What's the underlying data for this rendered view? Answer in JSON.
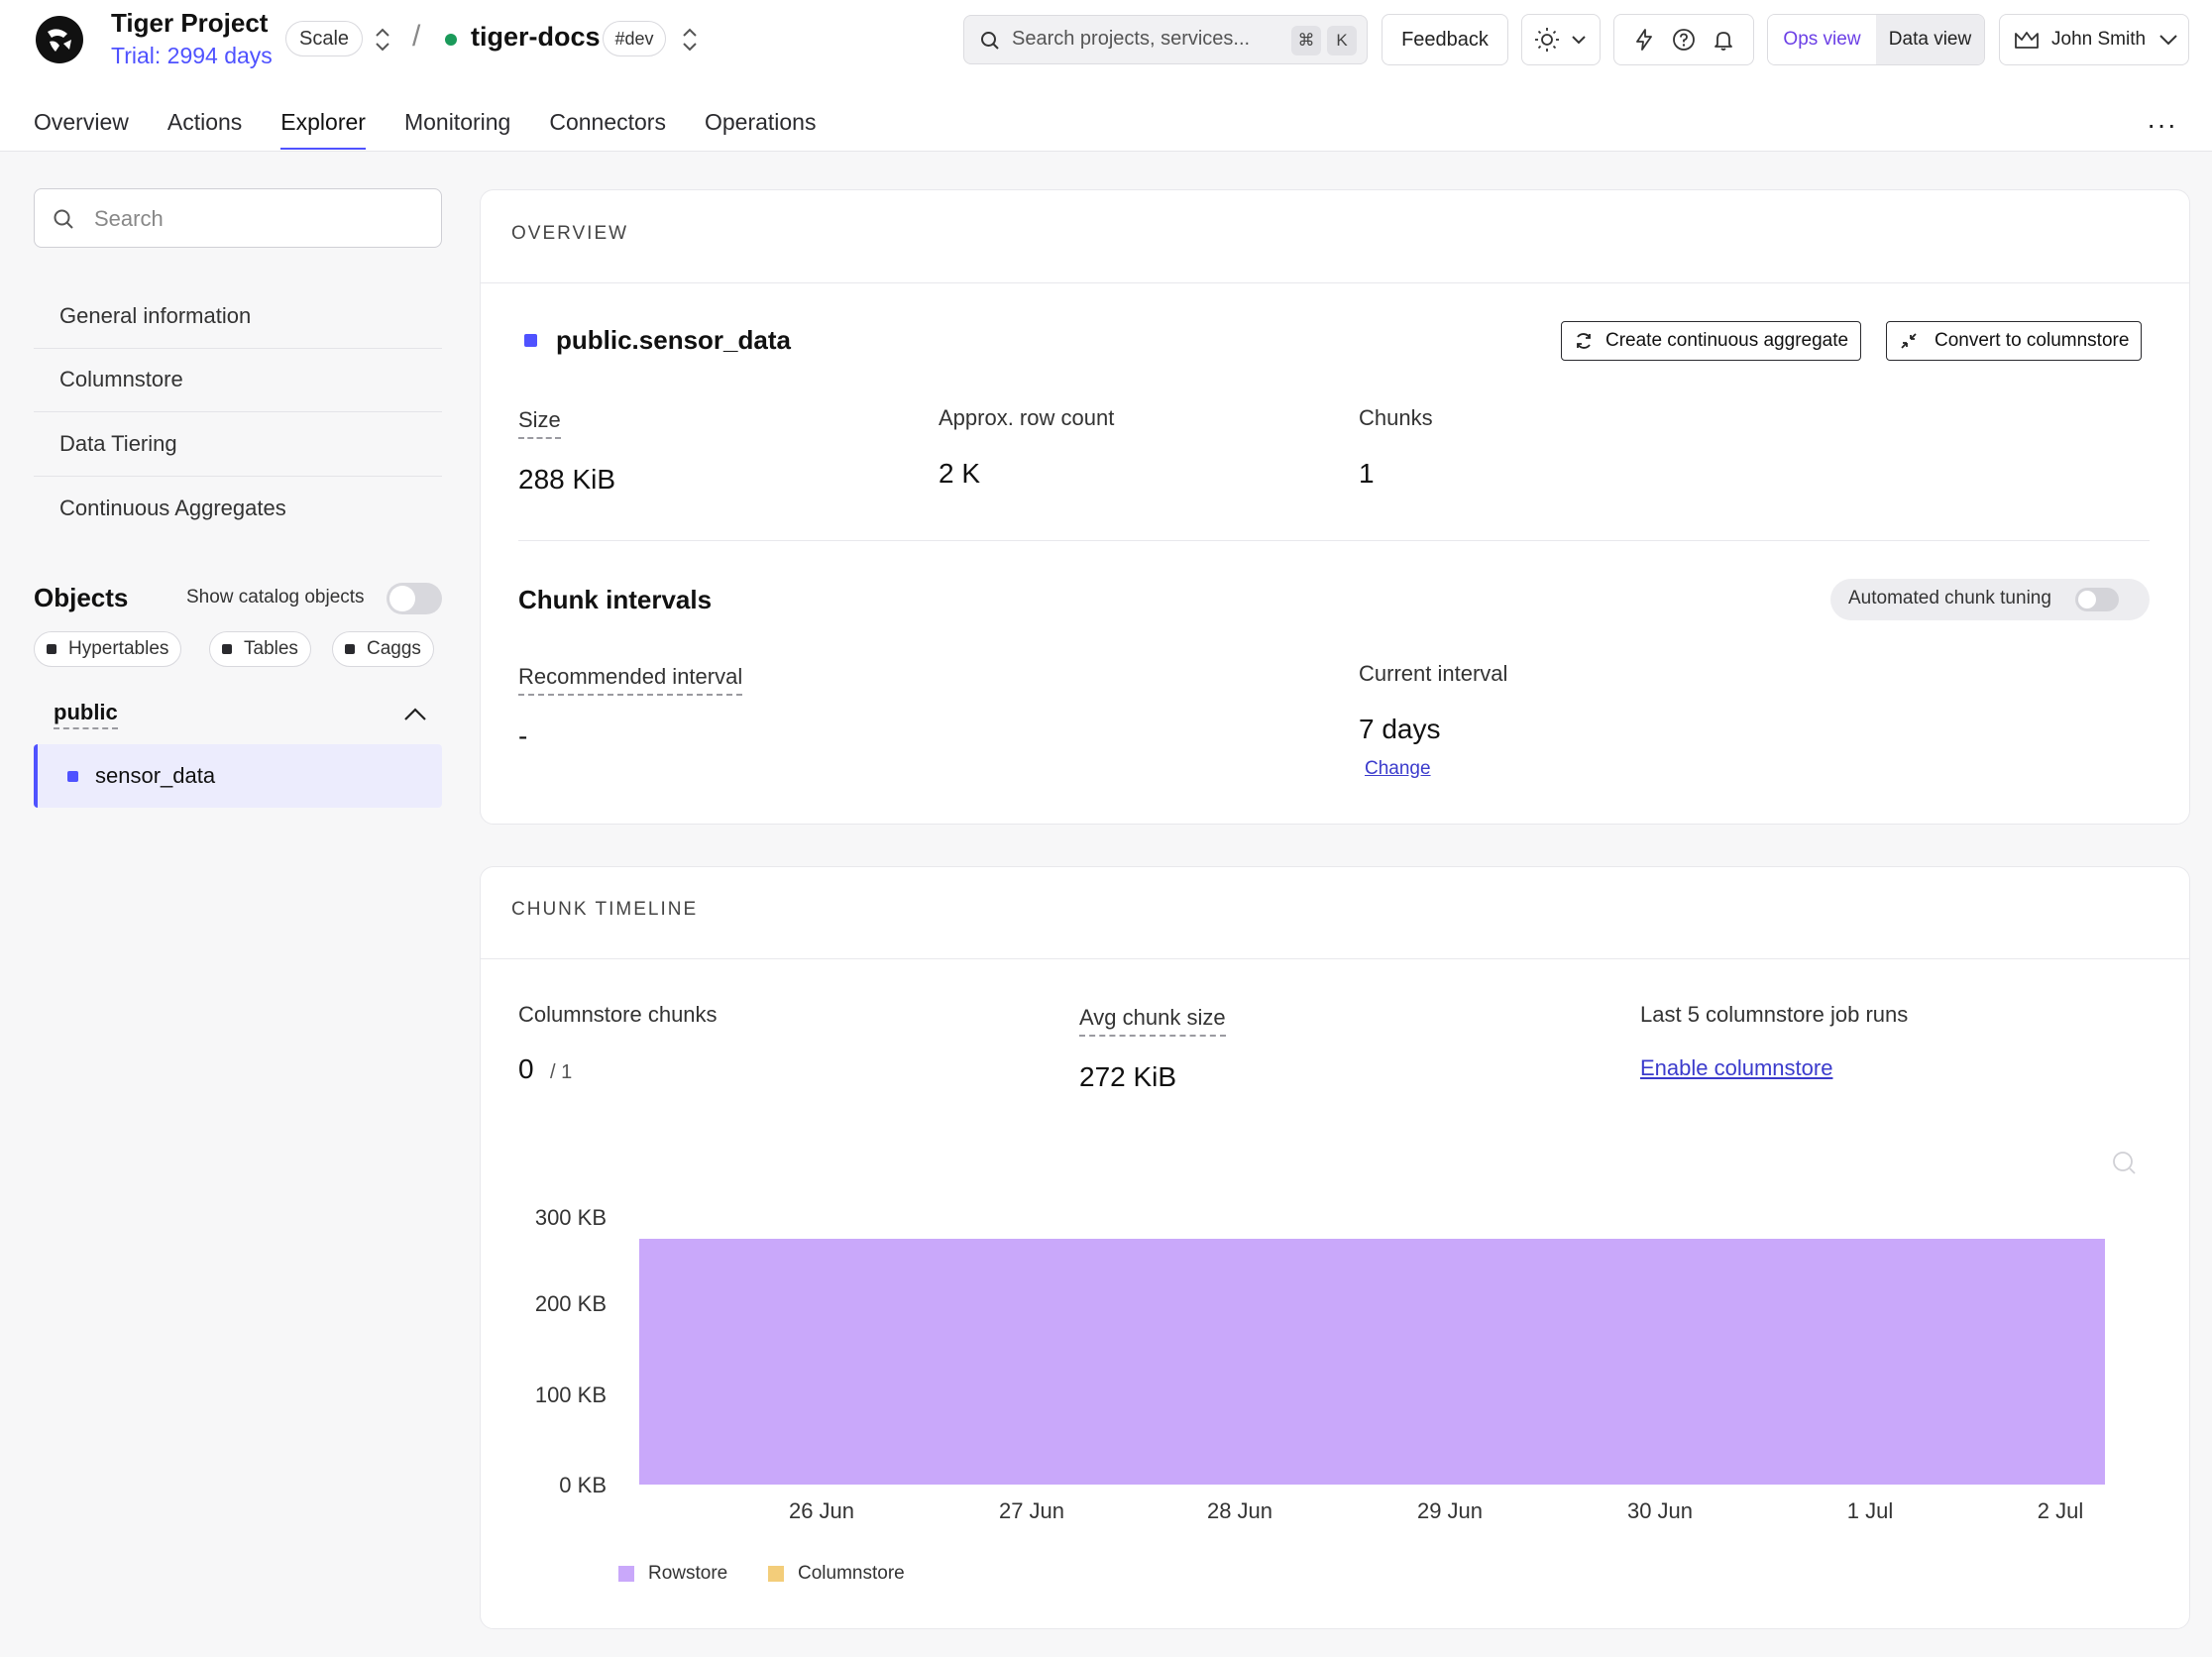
{
  "header": {
    "project_name": "Tiger Project",
    "trial": "Trial: 2994 days",
    "plan_badge": "Scale",
    "separator": "/",
    "service_name": "tiger-docs",
    "env_badge": "#dev",
    "search_placeholder": "Search projects, services...",
    "search_key_1": "⌘",
    "search_key_2": "K",
    "feedback_label": "Feedback",
    "view_ops": "Ops view",
    "view_data": "Data view",
    "user_name": "John Smith"
  },
  "tabs": [
    "Overview",
    "Actions",
    "Explorer",
    "Monitoring",
    "Connectors",
    "Operations"
  ],
  "active_tab": "Explorer",
  "more_label": "···",
  "sidebar": {
    "search_placeholder": "Search",
    "items": [
      "General information",
      "Columnstore",
      "Data Tiering",
      "Continuous Aggregates"
    ],
    "objects_title": "Objects",
    "show_catalog_label": "Show catalog objects",
    "filters": [
      "Hypertables",
      "Tables",
      "Caggs"
    ],
    "schema": "public",
    "selected_object": "sensor_data"
  },
  "overview": {
    "section_title": "OVERVIEW",
    "table_name": "public.sensor_data",
    "create_cagg_label": "Create continuous aggregate",
    "convert_label": "Convert to columnstore",
    "size_label": "Size",
    "size_value": "288 KiB",
    "row_count_label": "Approx. row count",
    "row_count_value": "2 K",
    "chunks_label": "Chunks",
    "chunks_value": "1",
    "chunk_intervals_title": "Chunk intervals",
    "auto_tuning_label": "Automated chunk tuning",
    "recommended_label": "Recommended interval",
    "recommended_value": "-",
    "current_label": "Current interval",
    "current_value": "7 days",
    "change_label": "Change"
  },
  "timeline": {
    "section_title": "CHUNK TIMELINE",
    "columnstore_chunks_label": "Columnstore chunks",
    "columnstore_chunks_value": "0",
    "columnstore_chunks_total": "/ 1",
    "avg_chunk_label": "Avg chunk size",
    "avg_chunk_value": "272 KiB",
    "last_runs_label": "Last 5 columnstore job runs",
    "enable_label": "Enable columnstore"
  },
  "colors": {
    "accent": "#4f52ff",
    "rowstore": "#c9a8fa",
    "columnstore": "#f3cd7a",
    "service_status": "#1a9a5a"
  },
  "chart_data": {
    "type": "bar",
    "x_labels": [
      "26 Jun",
      "27 Jun",
      "28 Jun",
      "29 Jun",
      "30 Jun",
      "1 Jul",
      "2 Jul"
    ],
    "y_ticks": [
      "300 KB",
      "200 KB",
      "100 KB",
      "0 KB"
    ],
    "ylim": [
      0,
      300
    ],
    "bars": [
      {
        "start": "25 Jun",
        "end": "2 Jul",
        "series": "Rowstore",
        "value": 272
      }
    ],
    "series": [
      {
        "name": "Rowstore",
        "color": "#c9a8fa"
      },
      {
        "name": "Columnstore",
        "color": "#f3cd7a"
      }
    ],
    "legend_position": "bottom-left"
  }
}
